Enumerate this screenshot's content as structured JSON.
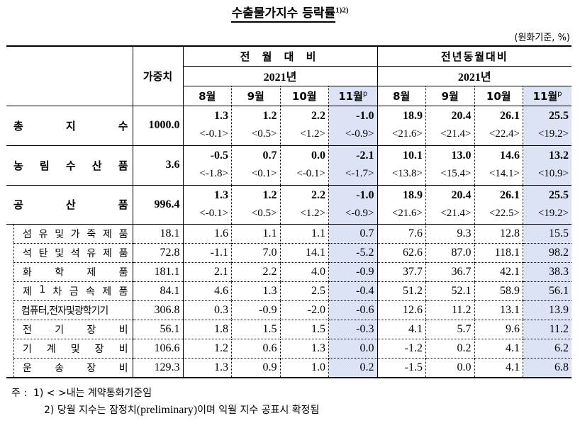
{
  "title": {
    "text": "수출물가지수 등락률",
    "superscript": "1)2)"
  },
  "unit_note": "(원화기준, %)",
  "header": {
    "weight_label": "가중치",
    "groups": [
      {
        "label": "전 월 대 비",
        "year": "2021년",
        "months": [
          "8월",
          "9월",
          "10월",
          "11월"
        ]
      },
      {
        "label": "전년동월대비",
        "year": "2021년",
        "months": [
          "8월",
          "9월",
          "10월",
          "11월"
        ]
      }
    ],
    "preliminary_mark": "p"
  },
  "main_rows": [
    {
      "label_chars": [
        "총",
        "지",
        "수"
      ],
      "weight": "1000.0",
      "mom": [
        "1.3",
        "1.2",
        "2.2",
        "-1.0"
      ],
      "mom_contract": [
        "<-0.1>",
        "<0.5>",
        "<1.2>",
        "<-0.9>"
      ],
      "yoy": [
        "18.9",
        "20.4",
        "26.1",
        "25.5"
      ],
      "yoy_contract": [
        "<21.6>",
        "<21.4>",
        "<22.4>",
        "<19.2>"
      ]
    },
    {
      "label_chars": [
        "농",
        "림",
        "수",
        "산",
        "품"
      ],
      "weight": "3.6",
      "mom": [
        "-0.5",
        "0.7",
        "0.0",
        "-2.1"
      ],
      "mom_contract": [
        "<-1.8>",
        "<0.1>",
        "<-0.1>",
        "<-1.7>"
      ],
      "yoy": [
        "10.1",
        "13.0",
        "14.6",
        "13.2"
      ],
      "yoy_contract": [
        "<13.8>",
        "<15.4>",
        "<14.1>",
        "<10.9>"
      ]
    },
    {
      "label_chars": [
        "공",
        "산",
        "품"
      ],
      "weight": "996.4",
      "mom": [
        "1.3",
        "1.2",
        "2.2",
        "-1.0"
      ],
      "mom_contract": [
        "<-0.1>",
        "<0.5>",
        "<1.2>",
        "<-0.9>"
      ],
      "yoy": [
        "18.9",
        "20.4",
        "26.1",
        "25.5"
      ],
      "yoy_contract": [
        "<21.6>",
        "<21.4>",
        "<22.5>",
        "<19.2>"
      ]
    }
  ],
  "sub_rows": [
    {
      "label": "섬유및가죽제품",
      "weight": "18.1",
      "values": [
        "1.6",
        "1.1",
        "1.1",
        "0.7",
        "7.6",
        "9.3",
        "12.8",
        "15.5"
      ]
    },
    {
      "label": "석탄및석유제품",
      "weight": "72.8",
      "values": [
        "-1.1",
        "7.0",
        "14.1",
        "-5.2",
        "62.6",
        "87.0",
        "118.1",
        "98.2"
      ]
    },
    {
      "label": "화학제품",
      "weight": "181.1",
      "values": [
        "2.1",
        "2.2",
        "4.0",
        "-0.9",
        "37.7",
        "36.7",
        "42.1",
        "38.3"
      ]
    },
    {
      "label": "제1차금속제품",
      "weight": "84.1",
      "values": [
        "4.6",
        "1.3",
        "2.5",
        "-0.4",
        "51.2",
        "52.1",
        "58.9",
        "56.1"
      ]
    },
    {
      "label": "컴퓨터,전자및광학기기",
      "weight": "306.8",
      "values": [
        "0.3",
        "-0.9",
        "-2.0",
        "-0.6",
        "12.6",
        "11.2",
        "13.1",
        "13.9"
      ]
    },
    {
      "label": "전기장비",
      "weight": "56.1",
      "values": [
        "1.8",
        "1.5",
        "1.5",
        "-0.3",
        "4.1",
        "5.7",
        "9.6",
        "11.2"
      ]
    },
    {
      "label": "기계및장비",
      "weight": "106.6",
      "values": [
        "1.2",
        "0.6",
        "1.3",
        "0.0",
        "-1.2",
        "0.2",
        "4.1",
        "6.2"
      ]
    },
    {
      "label": "운송장비",
      "weight": "129.3",
      "values": [
        "1.3",
        "0.9",
        "1.0",
        "0.2",
        "-1.5",
        "0.0",
        "4.1",
        "6.8"
      ]
    }
  ],
  "sub_label_chars": [
    [
      "섬",
      "유",
      "및",
      "가",
      "죽",
      "제",
      "품"
    ],
    [
      "석",
      "탄",
      "및",
      "석",
      "유",
      "제",
      "품"
    ],
    [
      "화",
      "학",
      "제",
      "품"
    ],
    [
      "제",
      "1",
      "차",
      "금",
      "속",
      "제",
      "품"
    ],
    [
      "컴퓨터,전자및광학기기"
    ],
    [
      "전",
      "기",
      "장",
      "비"
    ],
    [
      "기",
      "계",
      "및",
      "장",
      "비"
    ],
    [
      "운",
      "송",
      "장",
      "비"
    ]
  ],
  "footnotes": {
    "prefix": "주 :",
    "note1": "1) < >내는 계약통화기준임",
    "note2_a": "2) 당월 지수는 잠정치",
    "note2_b": "(preliminary)",
    "note2_c": "이며 익월 지수 공표시 확정됨"
  },
  "colors": {
    "highlight": "#dce3f5",
    "border": "#000000"
  }
}
